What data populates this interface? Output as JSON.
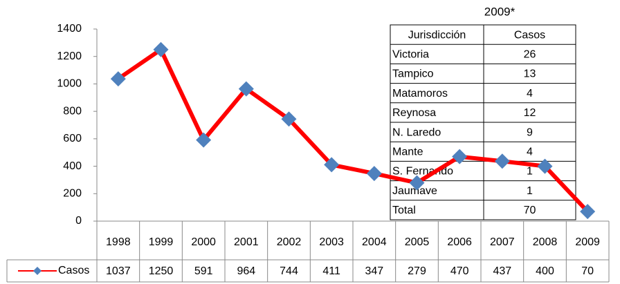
{
  "chart_data": {
    "type": "line",
    "categories": [
      "1998",
      "1999",
      "2000",
      "2001",
      "2002",
      "2003",
      "2004",
      "2005",
      "2006",
      "2007",
      "2008",
      "2009"
    ],
    "series": [
      {
        "name": "Casos",
        "color": "#ff0000",
        "marker_color": "#4f81bd",
        "values": [
          1037,
          1250,
          591,
          964,
          744,
          411,
          347,
          279,
          470,
          437,
          400,
          70
        ]
      }
    ],
    "ylim": [
      0,
      1400
    ],
    "yticks": [
      0,
      200,
      400,
      600,
      800,
      1000,
      1200,
      1400
    ],
    "table": {
      "title": "2009*",
      "header": [
        "Jurisdicción",
        "Casos"
      ],
      "rows": [
        [
          "Victoria",
          "26"
        ],
        [
          "Tampico",
          "13"
        ],
        [
          "Matamoros",
          "4"
        ],
        [
          "Reynosa",
          "12"
        ],
        [
          "N. Laredo",
          "9"
        ],
        [
          "Mante",
          "4"
        ],
        [
          "S. Fernando",
          "1"
        ],
        [
          "Jaumave",
          "1"
        ],
        [
          "Total",
          "70"
        ]
      ]
    }
  }
}
